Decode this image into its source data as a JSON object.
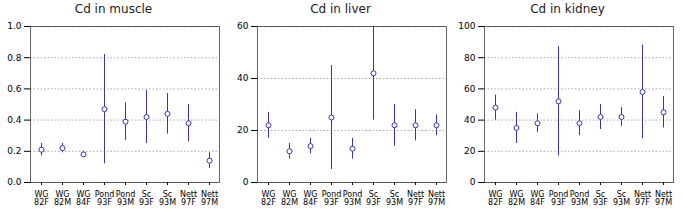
{
  "chart_data": [
    {
      "type": "errorbar",
      "title": "Cd in muscle",
      "categories": [
        "WG\n82F",
        "WG\n82M",
        "WG\n84F",
        "Pond\n93F",
        "Pond\n93M",
        "Sc\n93F",
        "Sc\n93M",
        "Nett\n97F",
        "Nett\n97M"
      ],
      "values": [
        0.21,
        0.22,
        0.18,
        0.47,
        0.39,
        0.42,
        0.44,
        0.38,
        0.14
      ],
      "errors": [
        0.04,
        0.03,
        0.02,
        0.35,
        0.12,
        0.17,
        0.13,
        0.12,
        0.05
      ],
      "color": "#3333bb",
      "marker": "circle",
      "ylim": [
        0.0,
        1.0
      ],
      "yticks": [
        {
          "value": 0,
          "label": "0.0"
        },
        0.2,
        0.4,
        0.6,
        0.8,
        {
          "value": 1,
          "label": "1.0"
        }
      ],
      "grid": true
    },
    {
      "type": "errorbar",
      "title": "Cd in liver",
      "categories": [
        "WG\n82F",
        "WG\n82M",
        "WG\n84F",
        "Pond\n93F",
        "Pond\n93M",
        "Sc\n93F",
        "Sc\n93M",
        "Nett\n97F",
        "Nett\n97M"
      ],
      "values": [
        22,
        12,
        14,
        25,
        13,
        42,
        22,
        22,
        22
      ],
      "errors": [
        5,
        3,
        3,
        20,
        4,
        18,
        8,
        6,
        4
      ],
      "color": "#3333bb",
      "marker": "circle",
      "ylim": [
        0,
        60
      ],
      "yticks": [
        0,
        20,
        40,
        60
      ],
      "grid": true
    },
    {
      "type": "errorbar",
      "title": "Cd in kidney",
      "categories": [
        "WG\n82F",
        "WG\n82M",
        "WG\n84F",
        "Pond\n93F",
        "Pond\n93M",
        "Sc\n93F",
        "Sc\n93M",
        "Nett\n97F",
        "Nett\n97M"
      ],
      "values": [
        48,
        35,
        38,
        52,
        38,
        42,
        42,
        58,
        45
      ],
      "errors": [
        8,
        10,
        6,
        35,
        8,
        8,
        6,
        30,
        10
      ],
      "color": "#3333bb",
      "marker": "circle",
      "ylim": [
        0,
        100
      ],
      "yticks": [
        0,
        20,
        40,
        60,
        80,
        100
      ],
      "grid": true
    }
  ]
}
